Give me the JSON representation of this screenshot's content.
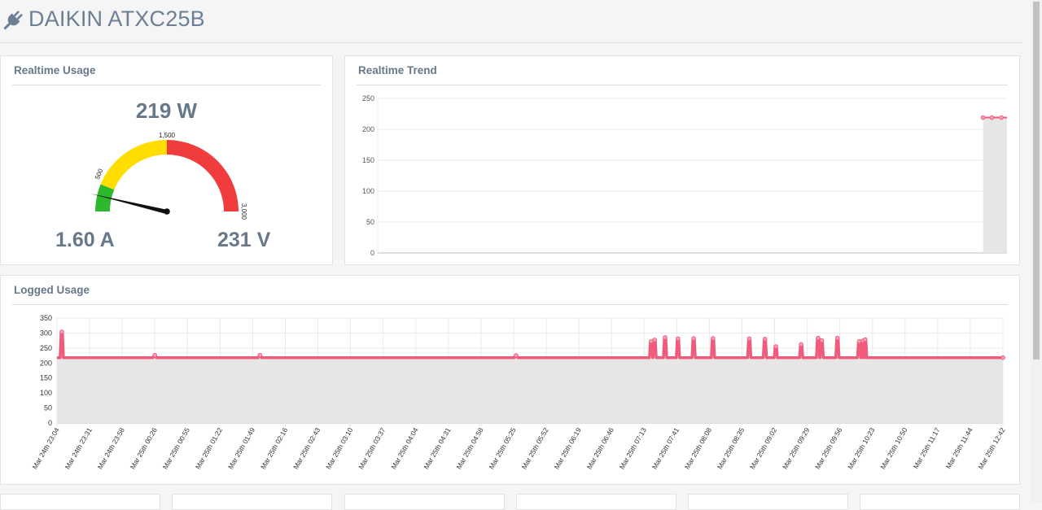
{
  "app": {
    "title": "DAIKIN ATXC25B"
  },
  "icons": {
    "header": "plug-icon"
  },
  "colors": {
    "line": "#f05a7b",
    "fill": "#e6e6e6",
    "gauge_green": "#2eb82e",
    "gauge_yellow": "#ffdd00",
    "gauge_red": "#f03c3c",
    "text": "#66788a"
  },
  "realtime_usage": {
    "title": "Realtime Usage",
    "power": "219 W",
    "current": "1.60 A",
    "voltage": "231 V",
    "gauge": {
      "min": 0,
      "max": 3000,
      "value": 219,
      "labels": [
        "500",
        "1,500",
        "3,000"
      ],
      "bands": [
        [
          0,
          500,
          "green"
        ],
        [
          500,
          1500,
          "yellow"
        ],
        [
          1500,
          3000,
          "red"
        ]
      ]
    }
  },
  "realtime_trend": {
    "title": "Realtime Trend"
  },
  "logged_usage": {
    "title": "Logged Usage"
  },
  "chart_data": [
    {
      "type": "area",
      "title": "Realtime Trend",
      "y_ticks": [
        0,
        50,
        100,
        150,
        200,
        250
      ],
      "ylim": [
        0,
        250
      ],
      "x_extent": [
        0,
        100
      ],
      "x": [
        96.2,
        97.6,
        99.1,
        100
      ],
      "values": [
        219,
        219,
        219,
        219
      ]
    },
    {
      "type": "area",
      "title": "Logged Usage",
      "y_ticks": [
        0,
        50,
        100,
        150,
        200,
        250,
        300,
        350
      ],
      "ylim": [
        0,
        350
      ],
      "x_tick_labels": [
        "Mar 24th 23:04",
        "Mar 24th 23:31",
        "Mar 24th 23:58",
        "Mar 25th 00:26",
        "Mar 25th 00:55",
        "Mar 25th 01:22",
        "Mar 25th 01:49",
        "Mar 25th 02:16",
        "Mar 25th 02:43",
        "Mar 25th 03:10",
        "Mar 25th 03:37",
        "Mar 25th 04:04",
        "Mar 25th 04:31",
        "Mar 25th 04:58",
        "Mar 25th 05:25",
        "Mar 25th 05:52",
        "Mar 25th 06:19",
        "Mar 25th 06:46",
        "Mar 25th 07:13",
        "Mar 25th 07:41",
        "Mar 25th 08:08",
        "Mar 25th 08:35",
        "Mar 25th 09:02",
        "Mar 25th 09:29",
        "Mar 25th 09:56",
        "Mar 25th 10:23",
        "Mar 25th 10:50",
        "Mar 25th 11:17",
        "Mar 25th 11:44",
        "Mar 25th 12:42"
      ],
      "baseline": 218,
      "spikes": [
        {
          "at": "Mar 24th 23:08",
          "value": 304
        },
        {
          "at": "Mar 25th 00:26",
          "value": 226
        },
        {
          "at": "Mar 25th 01:55",
          "value": 226
        },
        {
          "at": "Mar 25th 05:27",
          "value": 225
        },
        {
          "at": "Mar 25th 07:19",
          "value": 272
        },
        {
          "at": "Mar 25th 07:22",
          "value": 277
        },
        {
          "at": "Mar 25th 07:31",
          "value": 285
        },
        {
          "at": "Mar 25th 07:42",
          "value": 281
        },
        {
          "at": "Mar 25th 07:55",
          "value": 282
        },
        {
          "at": "Mar 25th 08:11",
          "value": 282
        },
        {
          "at": "Mar 25th 08:41",
          "value": 281
        },
        {
          "at": "Mar 25th 08:54",
          "value": 280
        },
        {
          "at": "Mar 25th 09:03",
          "value": 255
        },
        {
          "at": "Mar 25th 09:24",
          "value": 262
        },
        {
          "at": "Mar 25th 09:38",
          "value": 283
        },
        {
          "at": "Mar 25th 09:41",
          "value": 275
        },
        {
          "at": "Mar 25th 09:54",
          "value": 283
        },
        {
          "at": "Mar 25th 10:12",
          "value": 272
        },
        {
          "at": "Mar 25th 10:15",
          "value": 274
        },
        {
          "at": "Mar 25th 10:17",
          "value": 278
        }
      ]
    }
  ]
}
